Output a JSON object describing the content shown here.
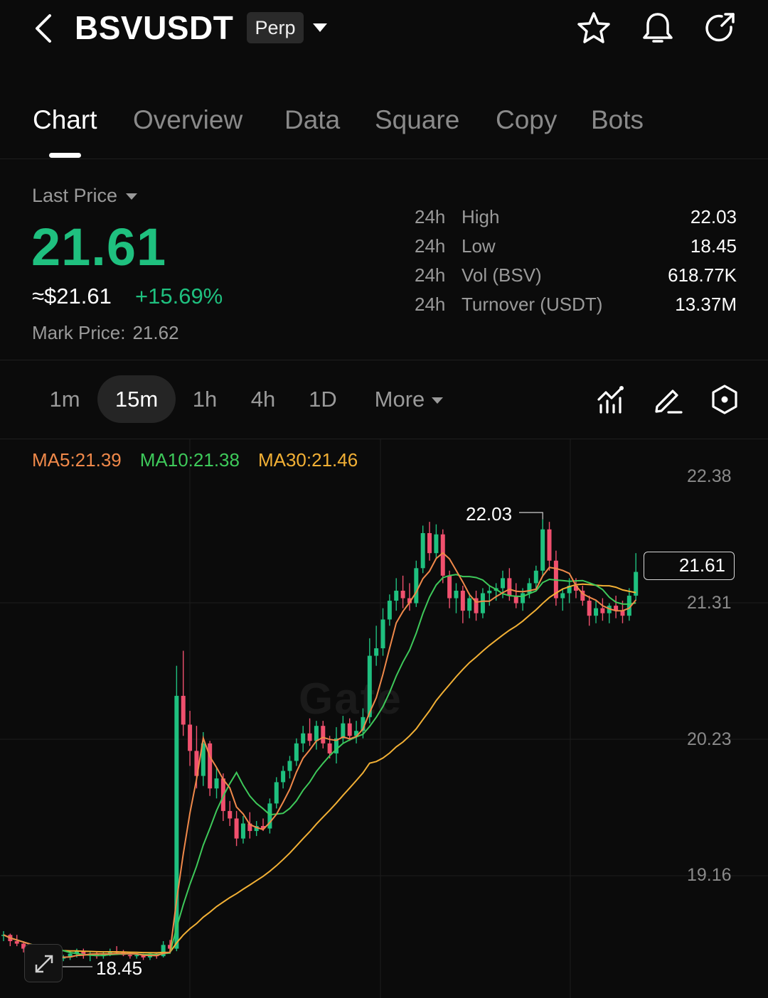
{
  "header": {
    "symbol": "BSVUSDT",
    "contract_badge": "Perp",
    "icons": [
      "back-icon",
      "chevron-down-icon",
      "star-icon",
      "bell-icon",
      "share-icon"
    ]
  },
  "tabs": [
    {
      "label": "Chart",
      "active": true
    },
    {
      "label": "Overview",
      "active": false
    },
    {
      "label": "Data",
      "active": false
    },
    {
      "label": "Square",
      "active": false
    },
    {
      "label": "Copy",
      "active": false
    },
    {
      "label": "Bots",
      "active": false
    }
  ],
  "price": {
    "label": "Last Price",
    "last": "21.61",
    "usd": "≈$21.61",
    "change": "+15.69%",
    "mark_label": "Mark Price:",
    "mark_value": "21.62",
    "up_color": "#1fc07f",
    "down_color": "#f0506e"
  },
  "stats": [
    {
      "prefix": "24h",
      "name": "High",
      "value": "22.03"
    },
    {
      "prefix": "24h",
      "name": "Low",
      "value": "18.45"
    },
    {
      "prefix": "24h",
      "name": "Vol (BSV)",
      "value": "618.77K"
    },
    {
      "prefix": "24h",
      "name": "Turnover (USDT)",
      "value": "13.37M"
    }
  ],
  "intervals": [
    {
      "label": "1m",
      "active": false
    },
    {
      "label": "15m",
      "active": true
    },
    {
      "label": "1h",
      "active": false
    },
    {
      "label": "4h",
      "active": false
    },
    {
      "label": "1D",
      "active": false
    },
    {
      "label": "More",
      "active": false
    }
  ],
  "chart_tools": [
    "indicators-icon",
    "draw-pen-icon",
    "settings-hexagon-icon",
    "expand-icon"
  ],
  "chart_data": {
    "type": "candlestick",
    "interval": "15m",
    "ma_legend": [
      {
        "label": "MA5:21.39",
        "color": "#f0894a"
      },
      {
        "label": "MA10:21.38",
        "color": "#3ec95a"
      },
      {
        "label": "MA30:21.46",
        "color": "#f2b035"
      }
    ],
    "y_ticks": [
      "22.38",
      "21.31",
      "20.23",
      "19.16"
    ],
    "y_range": [
      18.45,
      22.38
    ],
    "high_marker": "22.03",
    "low_marker": "18.45",
    "last_price_tag": "21.61",
    "watermark": "Gate",
    "grid": true,
    "ohlc_approx": [
      [
        18.71,
        18.74,
        18.66,
        18.71
      ],
      [
        18.71,
        18.72,
        18.62,
        18.66
      ],
      [
        18.66,
        18.71,
        18.62,
        18.64
      ],
      [
        18.64,
        18.66,
        18.57,
        18.6
      ],
      [
        18.6,
        18.62,
        18.54,
        18.57
      ],
      [
        18.57,
        18.61,
        18.53,
        18.55
      ],
      [
        18.55,
        18.58,
        18.44,
        18.52
      ],
      [
        18.52,
        18.56,
        18.49,
        18.54
      ],
      [
        18.54,
        18.56,
        18.5,
        18.52
      ],
      [
        18.52,
        18.55,
        18.5,
        18.53
      ],
      [
        18.53,
        18.58,
        18.51,
        18.56
      ],
      [
        18.56,
        18.6,
        18.53,
        18.58
      ],
      [
        18.58,
        18.6,
        18.52,
        18.55
      ],
      [
        18.55,
        18.58,
        18.5,
        18.56
      ],
      [
        18.56,
        18.58,
        18.52,
        18.54
      ],
      [
        18.54,
        18.58,
        18.52,
        18.56
      ],
      [
        18.56,
        18.6,
        18.54,
        18.58
      ],
      [
        18.58,
        18.62,
        18.55,
        18.57
      ],
      [
        18.57,
        18.59,
        18.54,
        18.55
      ],
      [
        18.55,
        18.57,
        18.52,
        18.54
      ],
      [
        18.54,
        18.56,
        18.52,
        18.55
      ],
      [
        18.55,
        18.56,
        18.51,
        18.53
      ],
      [
        18.53,
        18.57,
        18.51,
        18.56
      ],
      [
        18.56,
        18.57,
        18.52,
        18.54
      ],
      [
        18.54,
        18.66,
        18.53,
        18.63
      ],
      [
        18.63,
        18.67,
        18.58,
        18.6
      ],
      [
        18.6,
        20.86,
        18.58,
        20.62
      ],
      [
        20.62,
        20.98,
        20.3,
        20.39
      ],
      [
        20.39,
        20.5,
        20.06,
        20.18
      ],
      [
        20.18,
        20.38,
        19.88,
        19.98
      ],
      [
        19.98,
        20.33,
        19.9,
        20.24
      ],
      [
        20.24,
        20.26,
        19.82,
        19.88
      ],
      [
        19.88,
        20.05,
        19.8,
        19.96
      ],
      [
        19.96,
        20.0,
        19.62,
        19.7
      ],
      [
        19.7,
        19.78,
        19.58,
        19.64
      ],
      [
        19.64,
        19.7,
        19.42,
        19.48
      ],
      [
        19.48,
        19.66,
        19.44,
        19.6
      ],
      [
        19.6,
        19.69,
        19.48,
        19.54
      ],
      [
        19.54,
        19.62,
        19.5,
        19.58
      ],
      [
        19.58,
        19.64,
        19.54,
        19.56
      ],
      [
        19.56,
        19.8,
        19.52,
        19.76
      ],
      [
        19.76,
        19.97,
        19.72,
        19.93
      ],
      [
        19.93,
        20.06,
        19.88,
        20.02
      ],
      [
        20.02,
        20.14,
        19.96,
        20.1
      ],
      [
        20.1,
        20.28,
        20.06,
        20.24
      ],
      [
        20.24,
        20.38,
        20.17,
        20.32
      ],
      [
        20.32,
        20.44,
        20.22,
        20.26
      ],
      [
        20.26,
        20.42,
        20.19,
        20.38
      ],
      [
        20.38,
        20.42,
        20.2,
        20.24
      ],
      [
        20.24,
        20.3,
        20.12,
        20.16
      ],
      [
        20.16,
        20.37,
        20.08,
        20.28
      ],
      [
        20.28,
        20.46,
        20.24,
        20.4
      ],
      [
        20.4,
        20.44,
        20.26,
        20.3
      ],
      [
        20.3,
        20.42,
        20.24,
        20.34
      ],
      [
        20.34,
        20.52,
        20.28,
        20.45
      ],
      [
        20.45,
        21.08,
        20.4,
        20.94
      ],
      [
        20.94,
        21.18,
        20.86,
        21.0
      ],
      [
        21.0,
        21.32,
        20.94,
        21.23
      ],
      [
        21.23,
        21.43,
        21.18,
        21.38
      ],
      [
        21.38,
        21.56,
        21.3,
        21.46
      ],
      [
        21.46,
        21.58,
        21.32,
        21.4
      ],
      [
        21.4,
        21.52,
        21.3,
        21.36
      ],
      [
        21.36,
        21.7,
        21.33,
        21.64
      ],
      [
        21.64,
        21.98,
        21.6,
        21.92
      ],
      [
        21.92,
        22.01,
        21.7,
        21.76
      ],
      [
        21.76,
        21.99,
        21.72,
        21.91
      ],
      [
        21.91,
        21.95,
        21.52,
        21.58
      ],
      [
        21.58,
        21.62,
        21.32,
        21.4
      ],
      [
        21.4,
        21.52,
        21.28,
        21.46
      ],
      [
        21.46,
        21.5,
        21.2,
        21.3
      ],
      [
        21.3,
        21.44,
        21.24,
        21.4
      ],
      [
        21.4,
        21.46,
        21.22,
        21.28
      ],
      [
        21.28,
        21.48,
        21.24,
        21.44
      ],
      [
        21.44,
        21.5,
        21.34,
        21.46
      ],
      [
        21.46,
        21.52,
        21.38,
        21.48
      ],
      [
        21.48,
        21.62,
        21.4,
        21.56
      ],
      [
        21.56,
        21.64,
        21.38,
        21.42
      ],
      [
        21.42,
        21.52,
        21.32,
        21.36
      ],
      [
        21.36,
        21.48,
        21.3,
        21.44
      ],
      [
        21.44,
        21.56,
        21.4,
        21.52
      ],
      [
        21.52,
        21.66,
        21.46,
        21.62
      ],
      [
        21.62,
        22.03,
        21.58,
        21.95
      ],
      [
        21.95,
        22.01,
        21.62,
        21.7
      ],
      [
        21.7,
        21.78,
        21.34,
        21.4
      ],
      [
        21.4,
        21.48,
        21.3,
        21.44
      ],
      [
        21.44,
        21.56,
        21.36,
        21.5
      ],
      [
        21.5,
        21.56,
        21.4,
        21.46
      ],
      [
        21.46,
        21.5,
        21.34,
        21.38
      ],
      [
        21.38,
        21.42,
        21.18,
        21.26
      ],
      [
        21.26,
        21.38,
        21.2,
        21.32
      ],
      [
        21.32,
        21.4,
        21.22,
        21.28
      ],
      [
        21.28,
        21.36,
        21.2,
        21.34
      ],
      [
        21.34,
        21.42,
        21.24,
        21.3
      ],
      [
        21.3,
        21.38,
        21.2,
        21.26
      ],
      [
        21.26,
        21.48,
        21.22,
        21.42
      ],
      [
        21.42,
        21.76,
        21.38,
        21.61
      ]
    ]
  }
}
